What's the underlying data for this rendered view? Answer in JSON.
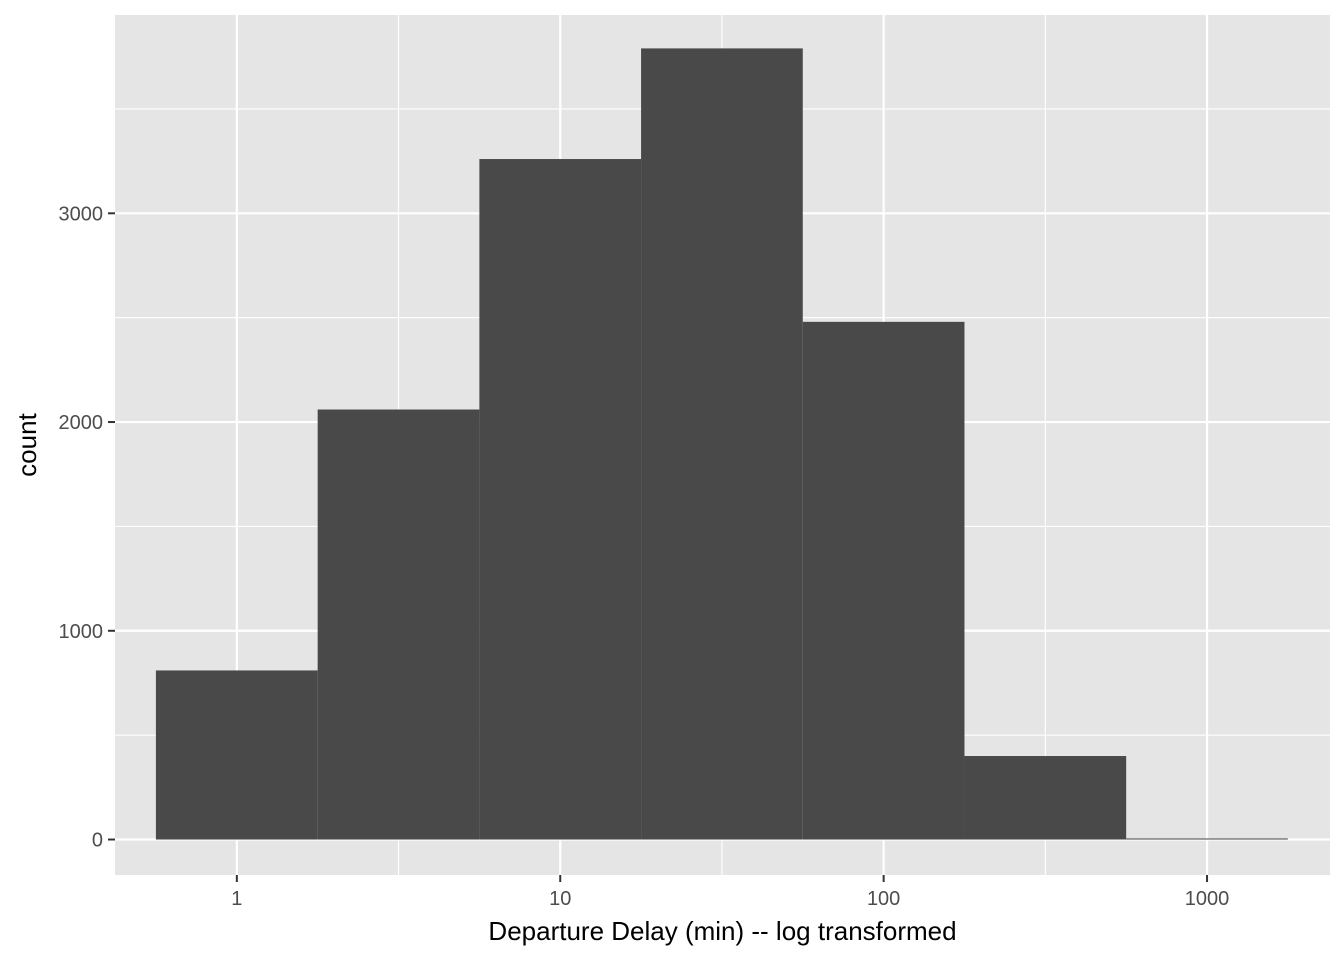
{
  "chart_data": {
    "type": "bar",
    "title": "",
    "xlabel": "Departure Delay (min) -- log transformed",
    "ylabel": "count",
    "x_scale": "log10",
    "xlim": [
      0.42,
      2400
    ],
    "ylim": [
      -170,
      3950
    ],
    "x_ticks": [
      {
        "value": 1,
        "label": "1"
      },
      {
        "value": 10,
        "label": "10"
      },
      {
        "value": 100,
        "label": "100"
      },
      {
        "value": 1000,
        "label": "1000"
      }
    ],
    "x_minor_ticks": [
      3.162,
      31.62,
      316.2
    ],
    "y_ticks": [
      {
        "value": 0,
        "label": "0"
      },
      {
        "value": 1000,
        "label": "1000"
      },
      {
        "value": 2000,
        "label": "2000"
      },
      {
        "value": 3000,
        "label": "3000"
      }
    ],
    "y_minor_ticks": [
      500,
      1500,
      2500,
      3500
    ],
    "bins": [
      {
        "x_min": 0.562,
        "x_max": 1.778,
        "count": 810
      },
      {
        "x_min": 1.778,
        "x_max": 5.623,
        "count": 2060
      },
      {
        "x_min": 5.623,
        "x_max": 17.78,
        "count": 3260
      },
      {
        "x_min": 17.78,
        "x_max": 56.23,
        "count": 3790
      },
      {
        "x_min": 56.23,
        "x_max": 177.8,
        "count": 2480
      },
      {
        "x_min": 177.8,
        "x_max": 562.3,
        "count": 400
      },
      {
        "x_min": 562.3,
        "x_max": 1778,
        "count": 5
      }
    ],
    "grid": true,
    "colors": {
      "panel_background": "#e5e5e5",
      "grid_line": "#ffffff",
      "bar_fill": "#494949",
      "tick_label": "#4d4d4d",
      "axis_tick": "#333333",
      "axis_title": "#000000"
    }
  }
}
